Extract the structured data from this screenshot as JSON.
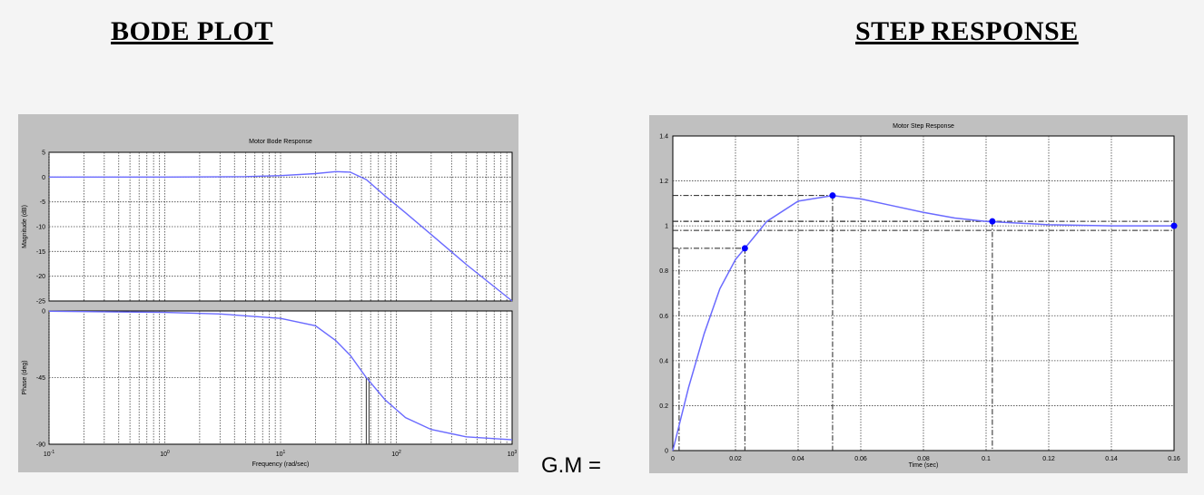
{
  "headings": {
    "bode": "BODE PLOT",
    "step": "STEP RESPONSE"
  },
  "gm_label": "G.M  =",
  "chart_data": [
    {
      "type": "line",
      "title": "Motor Bode Response",
      "xlabel": "Frequency  (rad/sec)",
      "ylabel": "Magnitude (dB)",
      "xscale": "log",
      "xlim": [
        0.1,
        1000
      ],
      "ylim": [
        -25,
        5
      ],
      "grid": true,
      "yticks": [
        5,
        0,
        -5,
        -10,
        -15,
        -20,
        -25
      ],
      "xticks": [
        {
          "base": "10",
          "exp": "-1"
        },
        {
          "base": "10",
          "exp": "0"
        },
        {
          "base": "10",
          "exp": "1"
        },
        {
          "base": "10",
          "exp": "2"
        },
        {
          "base": "10",
          "exp": "3"
        }
      ],
      "color": "#6a6aff",
      "x": [
        0.1,
        1,
        5,
        10,
        20,
        30,
        40,
        55,
        80,
        120,
        200,
        400,
        1000
      ],
      "y": [
        0,
        0,
        0.1,
        0.3,
        0.7,
        1.1,
        1.0,
        -0.5,
        -3.8,
        -7.2,
        -11.6,
        -17.6,
        -25
      ]
    },
    {
      "type": "line",
      "title": "",
      "xlabel": "Frequency  (rad/sec)",
      "ylabel": "Phase (deg)",
      "xscale": "log",
      "xlim": [
        0.1,
        1000
      ],
      "ylim": [
        -90,
        0
      ],
      "grid": true,
      "yticks": [
        0,
        -45,
        -90
      ],
      "color": "#6a6aff",
      "marker_x": 55,
      "x": [
        0.1,
        1,
        3,
        10,
        20,
        30,
        40,
        55,
        80,
        120,
        200,
        400,
        1000
      ],
      "y": [
        -0.2,
        -1,
        -2,
        -5,
        -10,
        -20,
        -30,
        -45,
        -60,
        -72,
        -80,
        -85,
        -87
      ]
    },
    {
      "type": "line",
      "title": "Motor Step Response",
      "xlabel": "Time (sec)",
      "ylabel": "",
      "xlim": [
        0,
        0.16
      ],
      "ylim": [
        0,
        1.4
      ],
      "grid": true,
      "xticks": [
        "0",
        "0.02",
        "0.04",
        "0.06",
        "0.08",
        "0.1",
        "0.12",
        "0.14",
        "0.16"
      ],
      "yticks": [
        "0",
        "0.2",
        "0.4",
        "0.6",
        "0.8",
        "1",
        "1.2",
        "1.4"
      ],
      "color": "#6a6aff",
      "x": [
        0,
        0.005,
        0.01,
        0.015,
        0.02,
        0.023,
        0.03,
        0.04,
        0.051,
        0.06,
        0.07,
        0.08,
        0.09,
        0.1,
        0.12,
        0.14,
        0.16
      ],
      "y": [
        0,
        0.28,
        0.52,
        0.72,
        0.85,
        0.9,
        1.02,
        1.11,
        1.135,
        1.12,
        1.09,
        1.06,
        1.035,
        1.02,
        1.005,
        1.0,
        1.0
      ],
      "markers": [
        {
          "x": 0.023,
          "y": 0.9
        },
        {
          "x": 0.051,
          "y": 1.135
        },
        {
          "x": 0.102,
          "y": 1.02
        },
        {
          "x": 0.16,
          "y": 1.0
        }
      ],
      "settling_band": [
        0.98,
        1.02
      ]
    }
  ]
}
